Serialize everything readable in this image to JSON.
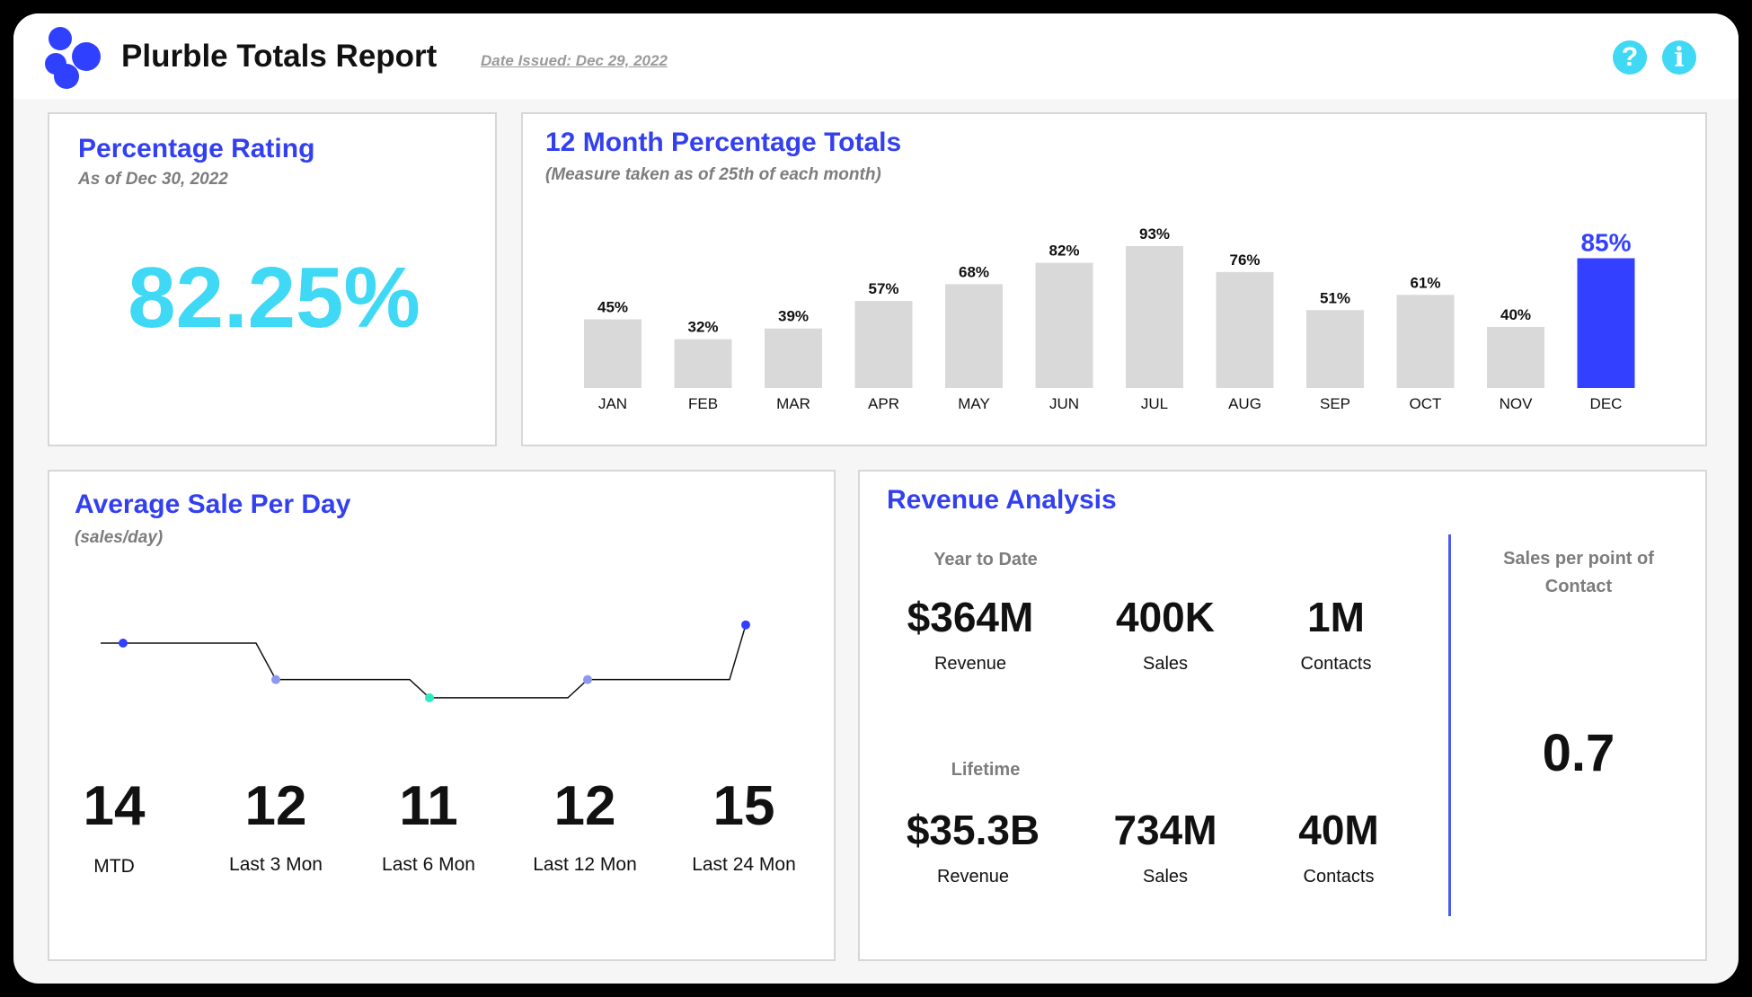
{
  "header": {
    "title": "Plurble Totals Report",
    "date_issued": "Date Issued: Dec 29, 2022",
    "help_glyph": "?",
    "info_glyph": "i",
    "icon_color": "#3fd8f5",
    "brand_color": "#3040ff"
  },
  "rating": {
    "title": "Percentage Rating",
    "subtitle": "As of Dec 30, 2022",
    "value": "82.25%"
  },
  "monthly": {
    "title": "12 Month Percentage Totals",
    "subtitle": "(Measure taken as of 25th of each month)"
  },
  "avg_sale": {
    "title": "Average Sale Per Day",
    "subtitle": "(sales/day)",
    "stats": [
      {
        "value": "14",
        "label": "MTD"
      },
      {
        "value": "12",
        "label": "Last 3 Mon"
      },
      {
        "value": "11",
        "label": "Last 6 Mon"
      },
      {
        "value": "12",
        "label": "Last 12 Mon"
      },
      {
        "value": "15",
        "label": "Last 24 Mon"
      }
    ]
  },
  "revenue": {
    "title": "Revenue Analysis",
    "ytd_heading": "Year to Date",
    "ytd": [
      {
        "value": "$364M",
        "label": "Revenue"
      },
      {
        "value": "400K",
        "label": "Sales"
      },
      {
        "value": "1M",
        "label": "Contacts"
      }
    ],
    "lifetime_heading": "Lifetime",
    "lifetime": [
      {
        "value": "$35.3B",
        "label": "Revenue"
      },
      {
        "value": "734M",
        "label": "Sales"
      },
      {
        "value": "40M",
        "label": "Contacts"
      }
    ],
    "spc_heading": "Sales per point of Contact",
    "spc_value": "0.7"
  },
  "chart_data": [
    {
      "type": "bar",
      "categories": [
        "JAN",
        "FEB",
        "MAR",
        "APR",
        "MAY",
        "JUN",
        "JUL",
        "AUG",
        "SEP",
        "OCT",
        "NOV",
        "DEC"
      ],
      "values": [
        45,
        32,
        39,
        57,
        68,
        82,
        93,
        76,
        51,
        61,
        40,
        85
      ],
      "data_labels": [
        "45%",
        "32%",
        "39%",
        "57%",
        "68%",
        "82%",
        "93%",
        "76%",
        "51%",
        "61%",
        "40%",
        "85%"
      ],
      "title": "12 Month Percentage Totals",
      "subtitle": "(Measure taken as of 25th of each month)",
      "ylim": [
        0,
        100
      ],
      "highlight_index": 11,
      "bar_color": "#d9d9d9",
      "highlight_color": "#3340ff",
      "grid": false
    },
    {
      "type": "line",
      "categories": [
        "MTD",
        "Last 3 Mon",
        "Last 6 Mon",
        "Last 12 Mon",
        "Last 24 Mon"
      ],
      "values": [
        14,
        12,
        11,
        12,
        15
      ],
      "title": "Average Sale Per Day",
      "subtitle": "(sales/day)",
      "point_colors": [
        "#3340ff",
        "#8c97f0",
        "#2ee8c4",
        "#8c97f0",
        "#3340ff"
      ],
      "line_color": "#111111",
      "grid": false
    }
  ]
}
